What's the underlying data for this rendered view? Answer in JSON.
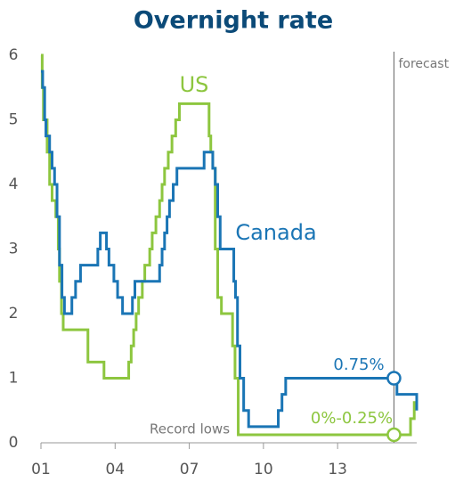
{
  "chart_data": {
    "type": "step-line",
    "title": "Overnight rate",
    "xlim": [
      2001,
      2016.2
    ],
    "xticks": [
      {
        "value": 2001,
        "label": "01"
      },
      {
        "value": 2004,
        "label": "04"
      },
      {
        "value": 2007,
        "label": "07"
      },
      {
        "value": 2010,
        "label": "10"
      },
      {
        "value": 2013,
        "label": "13"
      }
    ],
    "ylim": [
      0,
      6
    ],
    "yticks": [
      0,
      1,
      2,
      3,
      4,
      5,
      6
    ],
    "forecast_x": 2015.28,
    "forecast_label": "forecast",
    "series": [
      {
        "name": "US",
        "color": "#8dc63f",
        "x": [
          2001.0,
          2001.05,
          2001.1,
          2001.25,
          2001.35,
          2001.45,
          2001.6,
          2001.7,
          2001.75,
          2001.83,
          2001.9,
          2002.9,
          2003.55,
          2004.55,
          2004.65,
          2004.75,
          2004.85,
          2004.95,
          2005.1,
          2005.2,
          2005.4,
          2005.5,
          2005.65,
          2005.8,
          2005.9,
          2006.0,
          2006.15,
          2006.3,
          2006.45,
          2006.6,
          2007.8,
          2007.87,
          2007.95,
          2008.05,
          2008.15,
          2008.3,
          2008.75,
          2008.85,
          2008.98,
          2015.95,
          2016.1,
          2016.2
        ],
        "values": [
          6.0,
          5.5,
          5.0,
          4.5,
          4.0,
          3.75,
          3.5,
          3.0,
          2.5,
          2.0,
          1.75,
          1.25,
          1.0,
          1.25,
          1.5,
          1.75,
          2.0,
          2.25,
          2.5,
          2.75,
          3.0,
          3.25,
          3.5,
          3.75,
          4.0,
          4.25,
          4.5,
          4.75,
          5.0,
          5.25,
          4.75,
          4.5,
          4.25,
          3.0,
          2.25,
          2.0,
          1.5,
          1.0,
          0.125,
          0.375,
          0.625,
          0.625
        ]
      },
      {
        "name": "Canada",
        "color": "#1a75b5",
        "x": [
          2001.0,
          2001.07,
          2001.15,
          2001.2,
          2001.35,
          2001.45,
          2001.55,
          2001.65,
          2001.75,
          2001.85,
          2001.95,
          2002.25,
          2002.4,
          2002.6,
          2003.3,
          2003.4,
          2003.65,
          2003.75,
          2003.95,
          2004.1,
          2004.3,
          2004.7,
          2004.8,
          2005.8,
          2005.9,
          2006.0,
          2006.1,
          2006.2,
          2006.35,
          2006.5,
          2007.6,
          2007.95,
          2008.05,
          2008.15,
          2008.25,
          2008.8,
          2008.87,
          2008.95,
          2009.05,
          2009.2,
          2009.4,
          2010.6,
          2010.75,
          2010.9,
          2015.4,
          2016.2
        ],
        "values": [
          5.75,
          5.5,
          5.0,
          4.75,
          4.5,
          4.25,
          4.0,
          3.5,
          2.75,
          2.25,
          2.0,
          2.25,
          2.5,
          2.75,
          3.0,
          3.25,
          3.0,
          2.75,
          2.5,
          2.25,
          2.0,
          2.25,
          2.5,
          2.75,
          3.0,
          3.25,
          3.5,
          3.75,
          4.0,
          4.25,
          4.5,
          4.25,
          4.0,
          3.5,
          3.0,
          2.5,
          2.25,
          1.5,
          1.0,
          0.5,
          0.25,
          0.5,
          0.75,
          1.0,
          0.75,
          0.5
        ]
      }
    ],
    "annotations": [
      "US",
      "Canada",
      "0.75%",
      "0%-0.25%",
      "Record lows"
    ]
  }
}
